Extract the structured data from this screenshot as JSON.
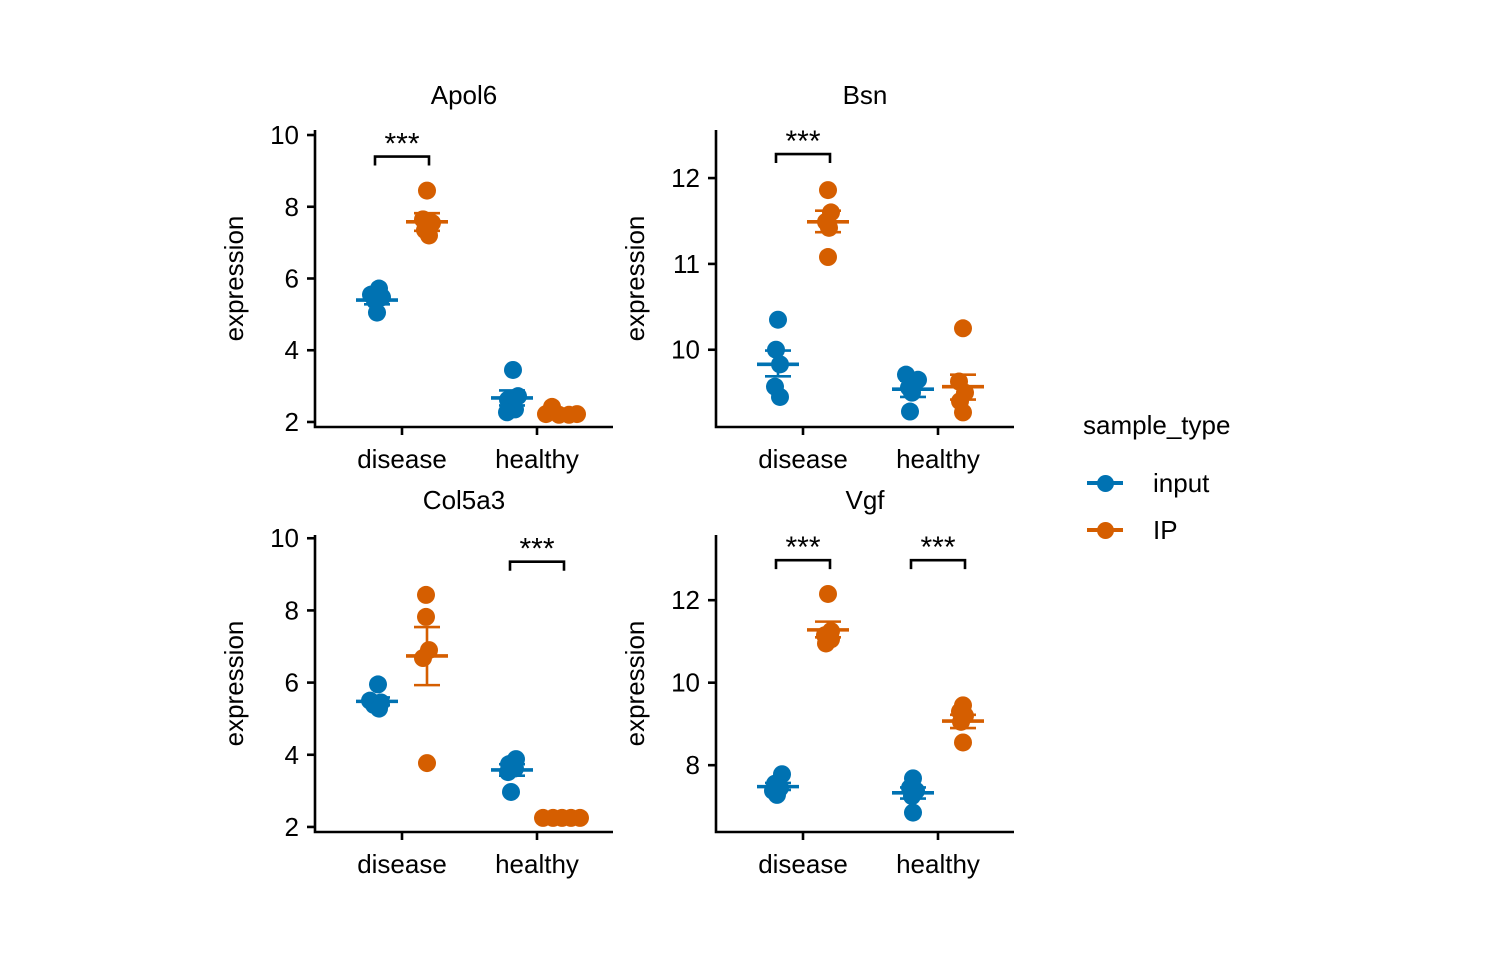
{
  "figure": {
    "background": "#ffffff",
    "ylabel": "expression",
    "x_categories": [
      "disease",
      "healthy"
    ],
    "legend": {
      "title": "sample_type",
      "items": [
        {
          "label": "input",
          "color": "#0072B2"
        },
        {
          "label": "IP",
          "color": "#D55E00"
        }
      ]
    }
  },
  "chart_data": [
    {
      "type": "scatter",
      "title": "Apol6",
      "xlabel": "",
      "ylabel": "expression",
      "x_categories": [
        "disease",
        "healthy"
      ],
      "yticks": [
        2,
        4,
        6,
        8,
        10
      ],
      "ylim": [
        1.86,
        10.14
      ],
      "style": "jittered dots with mean crossbar and SE error bars, dodged by sample_type",
      "groups": [
        {
          "category": "disease",
          "sample_type": "input",
          "mean": 5.4,
          "err": [
            5.28,
            5.53
          ],
          "points": [
            {
              "dx": 2,
              "y": 5.72
            },
            {
              "dx": -6,
              "y": 5.55
            },
            {
              "dx": 5,
              "y": 5.48
            },
            {
              "dx": -2,
              "y": 5.38
            },
            {
              "dx": 0,
              "y": 5.05
            }
          ]
        },
        {
          "category": "disease",
          "sample_type": "IP",
          "mean": 7.58,
          "err": [
            7.33,
            7.82
          ],
          "points": [
            {
              "dx": 0,
              "y": 8.45
            },
            {
              "dx": -4,
              "y": 7.65
            },
            {
              "dx": 5,
              "y": 7.55
            },
            {
              "dx": -2,
              "y": 7.35
            },
            {
              "dx": 2,
              "y": 7.2
            }
          ]
        },
        {
          "category": "healthy",
          "sample_type": "input",
          "mean": 2.67,
          "err": [
            2.46,
            2.88
          ],
          "points": [
            {
              "dx": 1,
              "y": 3.45
            },
            {
              "dx": 6,
              "y": 2.72
            },
            {
              "dx": -4,
              "y": 2.62
            },
            {
              "dx": 3,
              "y": 2.35
            },
            {
              "dx": -5,
              "y": 2.27
            }
          ]
        },
        {
          "category": "healthy",
          "sample_type": "IP",
          "mean": 2.26,
          "err": [
            2.18,
            2.33
          ],
          "points": [
            {
              "dx": -10,
              "y": 2.42
            },
            {
              "dx": -16,
              "y": 2.22
            },
            {
              "dx": -3,
              "y": 2.2
            },
            {
              "dx": 7,
              "y": 2.2
            },
            {
              "dx": 15,
              "y": 2.22
            }
          ]
        }
      ],
      "significance": [
        {
          "category": "disease",
          "label": "***",
          "y": 9.4
        }
      ]
    },
    {
      "type": "scatter",
      "title": "Bsn",
      "xlabel": "",
      "ylabel": "expression",
      "x_categories": [
        "disease",
        "healthy"
      ],
      "yticks": [
        10,
        11,
        12
      ],
      "ylim": [
        9.1,
        12.56
      ],
      "style": "jittered dots with mean crossbar and SE error bars, dodged by sample_type",
      "groups": [
        {
          "category": "disease",
          "sample_type": "input",
          "mean": 9.83,
          "err": [
            9.69,
            9.99
          ],
          "points": [
            {
              "dx": 0,
              "y": 10.35
            },
            {
              "dx": -2,
              "y": 10.0
            },
            {
              "dx": 2,
              "y": 9.83
            },
            {
              "dx": -3,
              "y": 9.57
            },
            {
              "dx": 2,
              "y": 9.45
            }
          ]
        },
        {
          "category": "disease",
          "sample_type": "IP",
          "mean": 11.49,
          "err": [
            11.37,
            11.62
          ],
          "points": [
            {
              "dx": 0,
              "y": 11.86
            },
            {
              "dx": 3,
              "y": 11.6
            },
            {
              "dx": -2,
              "y": 11.49
            },
            {
              "dx": 1,
              "y": 11.42
            },
            {
              "dx": 0,
              "y": 11.08
            }
          ]
        },
        {
          "category": "healthy",
          "sample_type": "input",
          "mean": 9.54,
          "err": [
            9.45,
            9.64
          ],
          "points": [
            {
              "dx": -7,
              "y": 9.71
            },
            {
              "dx": 5,
              "y": 9.65
            },
            {
              "dx": -4,
              "y": 9.56
            },
            {
              "dx": -1,
              "y": 9.5
            },
            {
              "dx": -3,
              "y": 9.28
            }
          ]
        },
        {
          "category": "healthy",
          "sample_type": "IP",
          "mean": 9.57,
          "err": [
            9.42,
            9.71
          ],
          "points": [
            {
              "dx": 0,
              "y": 10.25
            },
            {
              "dx": -4,
              "y": 9.63
            },
            {
              "dx": 2,
              "y": 9.5
            },
            {
              "dx": -3,
              "y": 9.4
            },
            {
              "dx": 0,
              "y": 9.27
            }
          ]
        }
      ],
      "significance": [
        {
          "category": "disease",
          "label": "***",
          "y": 12.28
        }
      ]
    },
    {
      "type": "scatter",
      "title": "Col5a3",
      "xlabel": "",
      "ylabel": "expression",
      "x_categories": [
        "disease",
        "healthy"
      ],
      "yticks": [
        2,
        4,
        6,
        8,
        10
      ],
      "ylim": [
        1.86,
        10.09
      ],
      "style": "jittered dots with mean crossbar and SE error bars, dodged by sample_type",
      "groups": [
        {
          "category": "disease",
          "sample_type": "input",
          "mean": 5.48,
          "err": [
            5.37,
            5.59
          ],
          "points": [
            {
              "dx": 1,
              "y": 5.95
            },
            {
              "dx": -7,
              "y": 5.5
            },
            {
              "dx": 4,
              "y": 5.45
            },
            {
              "dx": -3,
              "y": 5.38
            },
            {
              "dx": 2,
              "y": 5.28
            }
          ]
        },
        {
          "category": "disease",
          "sample_type": "IP",
          "mean": 6.74,
          "err": [
            5.93,
            7.54
          ],
          "points": [
            {
              "dx": -1,
              "y": 8.43
            },
            {
              "dx": -1,
              "y": 7.82
            },
            {
              "dx": 2,
              "y": 6.9
            },
            {
              "dx": -4,
              "y": 6.68
            },
            {
              "dx": 0,
              "y": 3.77
            }
          ]
        },
        {
          "category": "healthy",
          "sample_type": "input",
          "mean": 3.58,
          "err": [
            3.42,
            3.74
          ],
          "points": [
            {
              "dx": 4,
              "y": 3.88
            },
            {
              "dx": -3,
              "y": 3.74
            },
            {
              "dx": 3,
              "y": 3.62
            },
            {
              "dx": -4,
              "y": 3.52
            },
            {
              "dx": -1,
              "y": 2.97
            }
          ]
        },
        {
          "category": "healthy",
          "sample_type": "IP",
          "mean": 2.24,
          "err": [
            2.2,
            2.28
          ],
          "points": [
            {
              "dx": -19,
              "y": 2.25
            },
            {
              "dx": -9,
              "y": 2.25
            },
            {
              "dx": 0,
              "y": 2.25
            },
            {
              "dx": 9,
              "y": 2.25
            },
            {
              "dx": 18,
              "y": 2.25
            }
          ]
        }
      ],
      "significance": [
        {
          "category": "healthy",
          "label": "***",
          "y": 9.35
        }
      ]
    },
    {
      "type": "scatter",
      "title": "Vgf",
      "xlabel": "",
      "ylabel": "expression",
      "x_categories": [
        "disease",
        "healthy"
      ],
      "yticks": [
        8,
        10,
        12
      ],
      "ylim": [
        6.38,
        13.58
      ],
      "style": "jittered dots with mean crossbar and SE error bars, dodged by sample_type",
      "groups": [
        {
          "category": "disease",
          "sample_type": "input",
          "mean": 7.48,
          "err": [
            7.4,
            7.57
          ],
          "points": [
            {
              "dx": 4,
              "y": 7.78
            },
            {
              "dx": -3,
              "y": 7.55
            },
            {
              "dx": 2,
              "y": 7.45
            },
            {
              "dx": -5,
              "y": 7.38
            },
            {
              "dx": -1,
              "y": 7.28
            }
          ]
        },
        {
          "category": "disease",
          "sample_type": "IP",
          "mean": 11.28,
          "err": [
            11.1,
            11.48
          ],
          "points": [
            {
              "dx": 0,
              "y": 12.15
            },
            {
              "dx": 3,
              "y": 11.25
            },
            {
              "dx": -3,
              "y": 11.15
            },
            {
              "dx": 3,
              "y": 11.05
            },
            {
              "dx": -2,
              "y": 10.95
            }
          ]
        },
        {
          "category": "healthy",
          "sample_type": "input",
          "mean": 7.33,
          "err": [
            7.19,
            7.46
          ],
          "points": [
            {
              "dx": 0,
              "y": 7.68
            },
            {
              "dx": -3,
              "y": 7.45
            },
            {
              "dx": 3,
              "y": 7.38
            },
            {
              "dx": -1,
              "y": 7.25
            },
            {
              "dx": 0,
              "y": 6.85
            }
          ]
        },
        {
          "category": "healthy",
          "sample_type": "IP",
          "mean": 9.07,
          "err": [
            8.9,
            9.22
          ],
          "points": [
            {
              "dx": 0,
              "y": 9.45
            },
            {
              "dx": -3,
              "y": 9.3
            },
            {
              "dx": 2,
              "y": 9.2
            },
            {
              "dx": -2,
              "y": 9.05
            },
            {
              "dx": 0,
              "y": 8.55
            }
          ]
        }
      ],
      "significance": [
        {
          "category": "disease",
          "label": "***",
          "y": 12.97
        },
        {
          "category": "healthy",
          "label": "***",
          "y": 12.97
        }
      ]
    }
  ]
}
